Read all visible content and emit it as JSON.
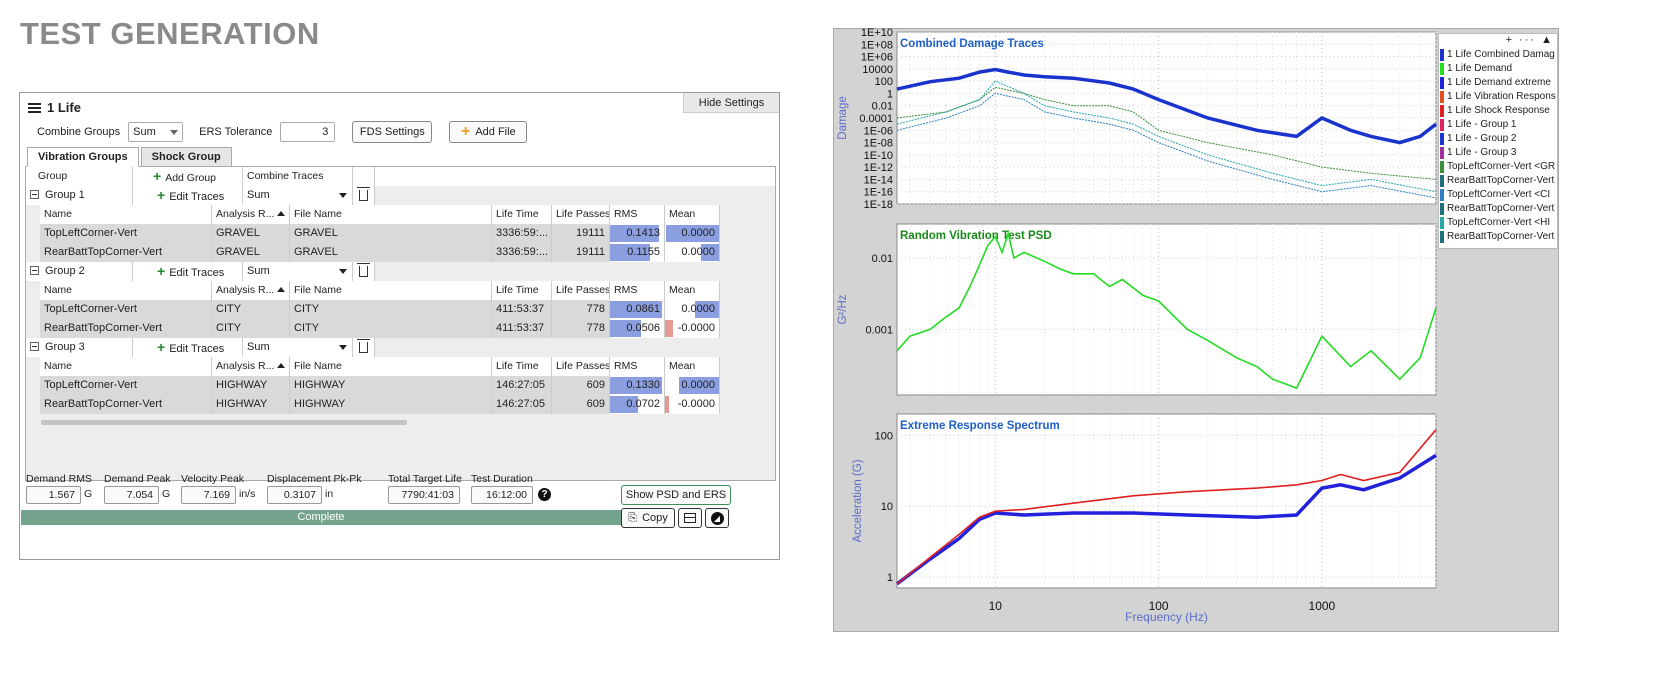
{
  "page_title": "TEST GENERATION",
  "panel": {
    "title": "1 Life",
    "hide_settings": "Hide Settings",
    "combine_groups_label": "Combine Groups",
    "combine_groups_value": "Sum",
    "ers_tolerance_label": "ERS Tolerance",
    "ers_tolerance_value": "3",
    "fds_settings": "FDS Settings",
    "add_file": "Add File",
    "tabs": [
      "Vibration Groups",
      "Shock Group"
    ],
    "grid_head": {
      "group": "Group",
      "add_group": "Add Group",
      "combine_traces": "Combine Traces"
    },
    "col_heads": {
      "name": "Name",
      "analysis": "Analysis R...",
      "file": "File Name",
      "life_time": "Life Time",
      "life_passes": "Life Passes",
      "rms": "RMS",
      "mean": "Mean"
    },
    "edit_traces": "Edit Traces",
    "groups": [
      {
        "name": "Group 1",
        "combine": "Sum",
        "rows": [
          {
            "name": "TopLeftCorner-Vert",
            "analysis": "GRAVEL",
            "file": "GRAVEL",
            "life_time": "3336:59:...",
            "life_passes": "19111",
            "rms": "0.1413",
            "rms_frac": 0.9,
            "mean": "0.0000",
            "mean_frac": 0.98,
            "mean_neg": false
          },
          {
            "name": "RearBattTopCorner-Vert",
            "analysis": "GRAVEL",
            "file": "GRAVEL",
            "life_time": "3336:59:...",
            "life_passes": "19111",
            "rms": "0.1155",
            "rms_frac": 0.74,
            "mean": "0.0000",
            "mean_frac": 0.34,
            "mean_neg": false
          }
        ]
      },
      {
        "name": "Group 2",
        "combine": "Sum",
        "rows": [
          {
            "name": "TopLeftCorner-Vert",
            "analysis": "CITY",
            "file": "CITY",
            "life_time": "411:53:37",
            "life_passes": "778",
            "rms": "0.0861",
            "rms_frac": 0.97,
            "mean": "0.0000",
            "mean_frac": 0.45,
            "mean_neg": false
          },
          {
            "name": "RearBattTopCorner-Vert",
            "analysis": "CITY",
            "file": "CITY",
            "life_time": "411:53:37",
            "life_passes": "778",
            "rms": "0.0506",
            "rms_frac": 0.57,
            "mean": "-0.0000",
            "mean_frac": 0.5,
            "mean_neg": true
          }
        ]
      },
      {
        "name": "Group 3",
        "combine": "Sum",
        "rows": [
          {
            "name": "TopLeftCorner-Vert",
            "analysis": "HIGHWAY",
            "file": "HIGHWAY",
            "life_time": "146:27:05",
            "life_passes": "609",
            "rms": "0.1330",
            "rms_frac": 0.97,
            "mean": "0.0000",
            "mean_frac": 0.75,
            "mean_neg": false
          },
          {
            "name": "RearBattTopCorner-Vert",
            "analysis": "HIGHWAY",
            "file": "HIGHWAY",
            "life_time": "146:27:05",
            "life_passes": "609",
            "rms": "0.0702",
            "rms_frac": 0.52,
            "mean": "-0.0000",
            "mean_frac": 0.25,
            "mean_neg": true
          }
        ]
      }
    ],
    "stats": {
      "demand_rms_label": "Demand RMS",
      "demand_rms": "1.567",
      "demand_rms_unit": "G",
      "demand_peak_label": "Demand Peak",
      "demand_peak": "7.054",
      "demand_peak_unit": "G",
      "velocity_peak_label": "Velocity Peak",
      "velocity_peak": "7.169",
      "velocity_peak_unit": "in/s",
      "disp_label": "Displacement Pk-Pk",
      "disp": "0.3107",
      "disp_unit": "in",
      "total_life_label": "Total Target Life",
      "total_life": "7790:41:03",
      "duration_label": "Test Duration",
      "duration": "16:12:00"
    },
    "show_psd": "Show PSD and ERS",
    "copy": "Copy",
    "status": "Complete",
    "help": "?"
  },
  "chart_data": [
    {
      "type": "line",
      "title": "Combined Damage Traces",
      "ylabel": "Damage",
      "yscale": "log",
      "yticks": [
        "1E+10",
        "1E+08",
        "1E+06",
        "10000",
        "100",
        "1",
        "0.01",
        "0.0001",
        "1E-06",
        "1E-08",
        "1E-10",
        "1E-12",
        "1E-14",
        "1E-16",
        "1E-18"
      ],
      "xlim": [
        2.5,
        5000
      ],
      "series": [
        {
          "name": "1 Life Combined Damage",
          "color": "#1a33cc",
          "x": [
            2.5,
            4,
            6,
            8,
            10,
            12,
            15,
            20,
            30,
            50,
            70,
            100,
            200,
            400,
            700,
            1000,
            1500,
            2000,
            3000,
            4000,
            5000
          ],
          "y": [
            5,
            80,
            300,
            3000,
            8000,
            3000,
            1000,
            500,
            300,
            50,
            5,
            0.1,
            0.0001,
            1e-06,
            1e-07,
            0.0001,
            1e-06,
            1e-07,
            1e-08,
            1e-07,
            1e-05
          ]
        },
        {
          "name": "Group 1",
          "color": "#3c8f3c",
          "x": [
            2.5,
            5,
            8,
            10,
            15,
            20,
            30,
            50,
            70,
            100,
            200,
            500,
            1000,
            2000,
            5000
          ],
          "y": [
            0.0001,
            0.001,
            0.1,
            10,
            1,
            0.1,
            0.01,
            0.01,
            0.001,
            1e-06,
            1e-08,
            1e-10,
            1e-12,
            1e-13,
            1e-14
          ]
        },
        {
          "name": "Group 2",
          "color": "#2f7fc1",
          "x": [
            2.5,
            5,
            8,
            10,
            15,
            20,
            30,
            50,
            70,
            100,
            200,
            500,
            1000,
            2000,
            5000
          ],
          "y": [
            1e-06,
            0.0001,
            0.01,
            1,
            0.1,
            0.001,
            0.0001,
            1e-05,
            1e-06,
            1e-08,
            1e-11,
            1e-14,
            1e-16,
            1e-15,
            1e-17
          ]
        },
        {
          "name": "Group 3",
          "color": "#2aa6a6",
          "x": [
            2.5,
            5,
            8,
            10,
            15,
            20,
            30,
            50,
            70,
            100,
            200,
            500,
            1000,
            2000,
            5000
          ],
          "y": [
            1e-05,
            0.001,
            0.1,
            100,
            1,
            0.01,
            0.001,
            0.0001,
            1e-05,
            1e-07,
            1e-10,
            1e-13,
            1e-15,
            1e-14,
            1e-16
          ]
        }
      ]
    },
    {
      "type": "line",
      "title": "Random Vibration Test PSD",
      "ylabel": "G²/Hz",
      "yscale": "log",
      "yticks": [
        "0.01",
        "0.001"
      ],
      "series": [
        {
          "name": "1 Life Demand",
          "color": "#22dd22",
          "x": [
            2.5,
            3,
            4,
            5,
            6,
            7,
            8,
            9,
            10,
            11,
            12,
            13,
            15,
            20,
            25,
            30,
            40,
            50,
            60,
            80,
            100,
            150,
            200,
            300,
            400,
            500,
            700,
            1000,
            1500,
            2000,
            3000,
            4000,
            5000
          ],
          "y": [
            0.0005,
            0.0008,
            0.001,
            0.0015,
            0.002,
            0.004,
            0.008,
            0.015,
            0.02,
            0.012,
            0.022,
            0.01,
            0.012,
            0.009,
            0.007,
            0.006,
            0.006,
            0.004,
            0.005,
            0.003,
            0.0025,
            0.001,
            0.0007,
            0.0004,
            0.0003,
            0.0002,
            0.00015,
            0.0008,
            0.0003,
            0.0005,
            0.0002,
            0.0004,
            0.002
          ]
        }
      ]
    },
    {
      "type": "line",
      "title": "Extreme Response Spectrum",
      "ylabel": "Acceleration (G)",
      "xlabel": "Frequency (Hz)",
      "yscale": "log",
      "xscale": "log",
      "yticks": [
        "100",
        "10",
        "1"
      ],
      "xticks": [
        "10",
        "100",
        "1000"
      ],
      "series": [
        {
          "name": "1 Life Demand extreme",
          "color": "#2222dd",
          "x": [
            2.5,
            4,
            6,
            8,
            10,
            15,
            30,
            70,
            150,
            400,
            700,
            1000,
            1300,
            1800,
            3000,
            5000
          ],
          "y": [
            0.8,
            1.8,
            3.5,
            6.5,
            8,
            7.5,
            8,
            8,
            7.5,
            7,
            7.5,
            18,
            20,
            17,
            25,
            52
          ]
        },
        {
          "name": "1 Life Vibration Response",
          "color": "#e02020",
          "x": [
            2.5,
            4,
            6,
            8,
            10,
            15,
            30,
            70,
            150,
            400,
            700,
            1000,
            1300,
            1800,
            3000,
            5000
          ],
          "y": [
            0.8,
            1.9,
            4,
            7,
            8.5,
            9,
            11,
            14,
            16,
            18,
            20,
            23,
            28,
            23,
            30,
            120
          ]
        }
      ]
    }
  ],
  "legend": {
    "controls": "+ ··· ▲",
    "items": [
      {
        "label": "1 Life Combined Damag",
        "color": "#1a33cc"
      },
      {
        "label": "1 Life Demand",
        "color": "#22dd22"
      },
      {
        "label": "1 Life Demand extreme",
        "color": "#2222dd"
      },
      {
        "label": "1 Life Vibration Respons",
        "color": "#e05020"
      },
      {
        "label": "1 Life Shock Response",
        "color": "#e02020"
      },
      {
        "label": "1 Life - Group 1",
        "color": "#e02060"
      },
      {
        "label": "1 Life - Group 2",
        "color": "#1a33cc"
      },
      {
        "label": "1 Life - Group 3",
        "color": "#a030a0"
      },
      {
        "label": "TopLeftCorner-Vert <GR",
        "color": "#3c8f3c"
      },
      {
        "label": "RearBattTopCorner-Vert",
        "color": "#1f6f7f"
      },
      {
        "label": "TopLeftCorner-Vert <CI",
        "color": "#2f7fc1"
      },
      {
        "label": "RearBattTopCorner-Vert",
        "color": "#1f6f7f"
      },
      {
        "label": "TopLeftCorner-Vert <HI",
        "color": "#2aa6a6"
      },
      {
        "label": "RearBattTopCorner-Vert",
        "color": "#1f6f7f"
      }
    ]
  }
}
